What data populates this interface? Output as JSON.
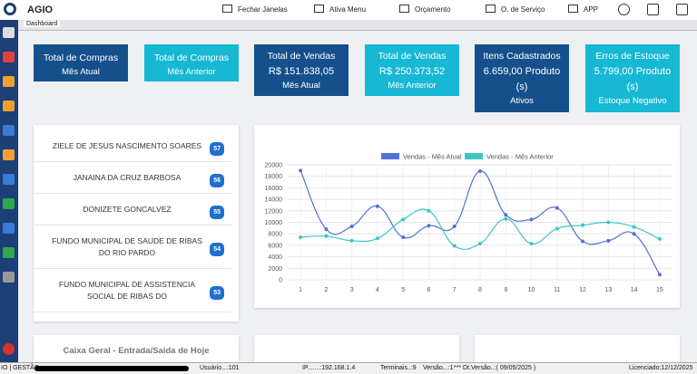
{
  "header": {
    "brand": "AGIO",
    "menu": [
      "Fechar Janelas",
      "Ativa Menu",
      "Orçamento",
      "O. de Serviço",
      "APP"
    ]
  },
  "tab": "Dashboard",
  "cards": [
    {
      "title": "Total de Compras",
      "lines": [],
      "footer": "Mês Atual"
    },
    {
      "title": "Total de Compras",
      "lines": [],
      "footer": "Mês Anterior"
    },
    {
      "title": "Total de Vendas",
      "lines": [
        "R$ 151.838,05"
      ],
      "footer": "Mês Atual"
    },
    {
      "title": "Total de Vendas",
      "lines": [
        "R$ 250.373,52"
      ],
      "footer": "Mês Anterior"
    },
    {
      "title": "Itens Cadastrados",
      "lines": [
        "6.659,00 Produto",
        "(s)"
      ],
      "footer": "Ativos"
    },
    {
      "title": "Erros de Estoque",
      "lines": [
        "5.799,00 Produto",
        "(s)"
      ],
      "footer": "Estoque Negativo"
    }
  ],
  "ranking": [
    {
      "name": [
        "ZIELE DE JESUS NASCIMENTO SOARES"
      ],
      "badge": "57"
    },
    {
      "name": [
        "JANAINA DA CRUZ BARBOSA"
      ],
      "badge": "56"
    },
    {
      "name": [
        "DONIZETE GONCALVEZ"
      ],
      "badge": "55"
    },
    {
      "name": [
        "FUNDO MUNICIPAL DE SAUDE DE RIBAS",
        "DO RIO PARDO"
      ],
      "badge": "54"
    },
    {
      "name": [
        "FUNDO MUNICIPAL DE ASSISTENCIA",
        "SOCIAL DE RIBAS DO"
      ],
      "badge": "53"
    }
  ],
  "chart_data": {
    "type": "line",
    "categories": [
      "1",
      "2",
      "3",
      "4",
      "5",
      "6",
      "7",
      "8",
      "9",
      "10",
      "11",
      "12",
      "13",
      "14",
      "15"
    ],
    "series": [
      {
        "name": "Vendas - Mês Atual",
        "color": "#5470d6",
        "values": [
          19000,
          8800,
          9300,
          12800,
          7400,
          9400,
          9300,
          18900,
          11300,
          10500,
          12500,
          6700,
          6800,
          8000,
          900
        ]
      },
      {
        "name": "Vendas - Mês Anterior",
        "color": "#3ec6c6",
        "values": [
          7400,
          7600,
          6800,
          7200,
          10500,
          12000,
          5900,
          6300,
          10600,
          6300,
          8900,
          9500,
          10000,
          9200,
          7100
        ]
      }
    ],
    "ylim": [
      0,
      20000
    ],
    "yticks": [
      0,
      2000,
      4000,
      6000,
      8000,
      10000,
      12000,
      14000,
      16000,
      18000,
      20000
    ],
    "grid": true
  },
  "bottom_panel": "Caixa Geral - Entrada/Saida de Hoje",
  "status": [
    "IO | GESTÃO",
    "Usuário...:101",
    "IP.......:192.168.1.4",
    "Terminais..:9",
    "Versão...:1",
    "***",
    "Dt.Versão..:( 09/05/2025 )",
    "Licenciado:12/12/2025"
  ]
}
